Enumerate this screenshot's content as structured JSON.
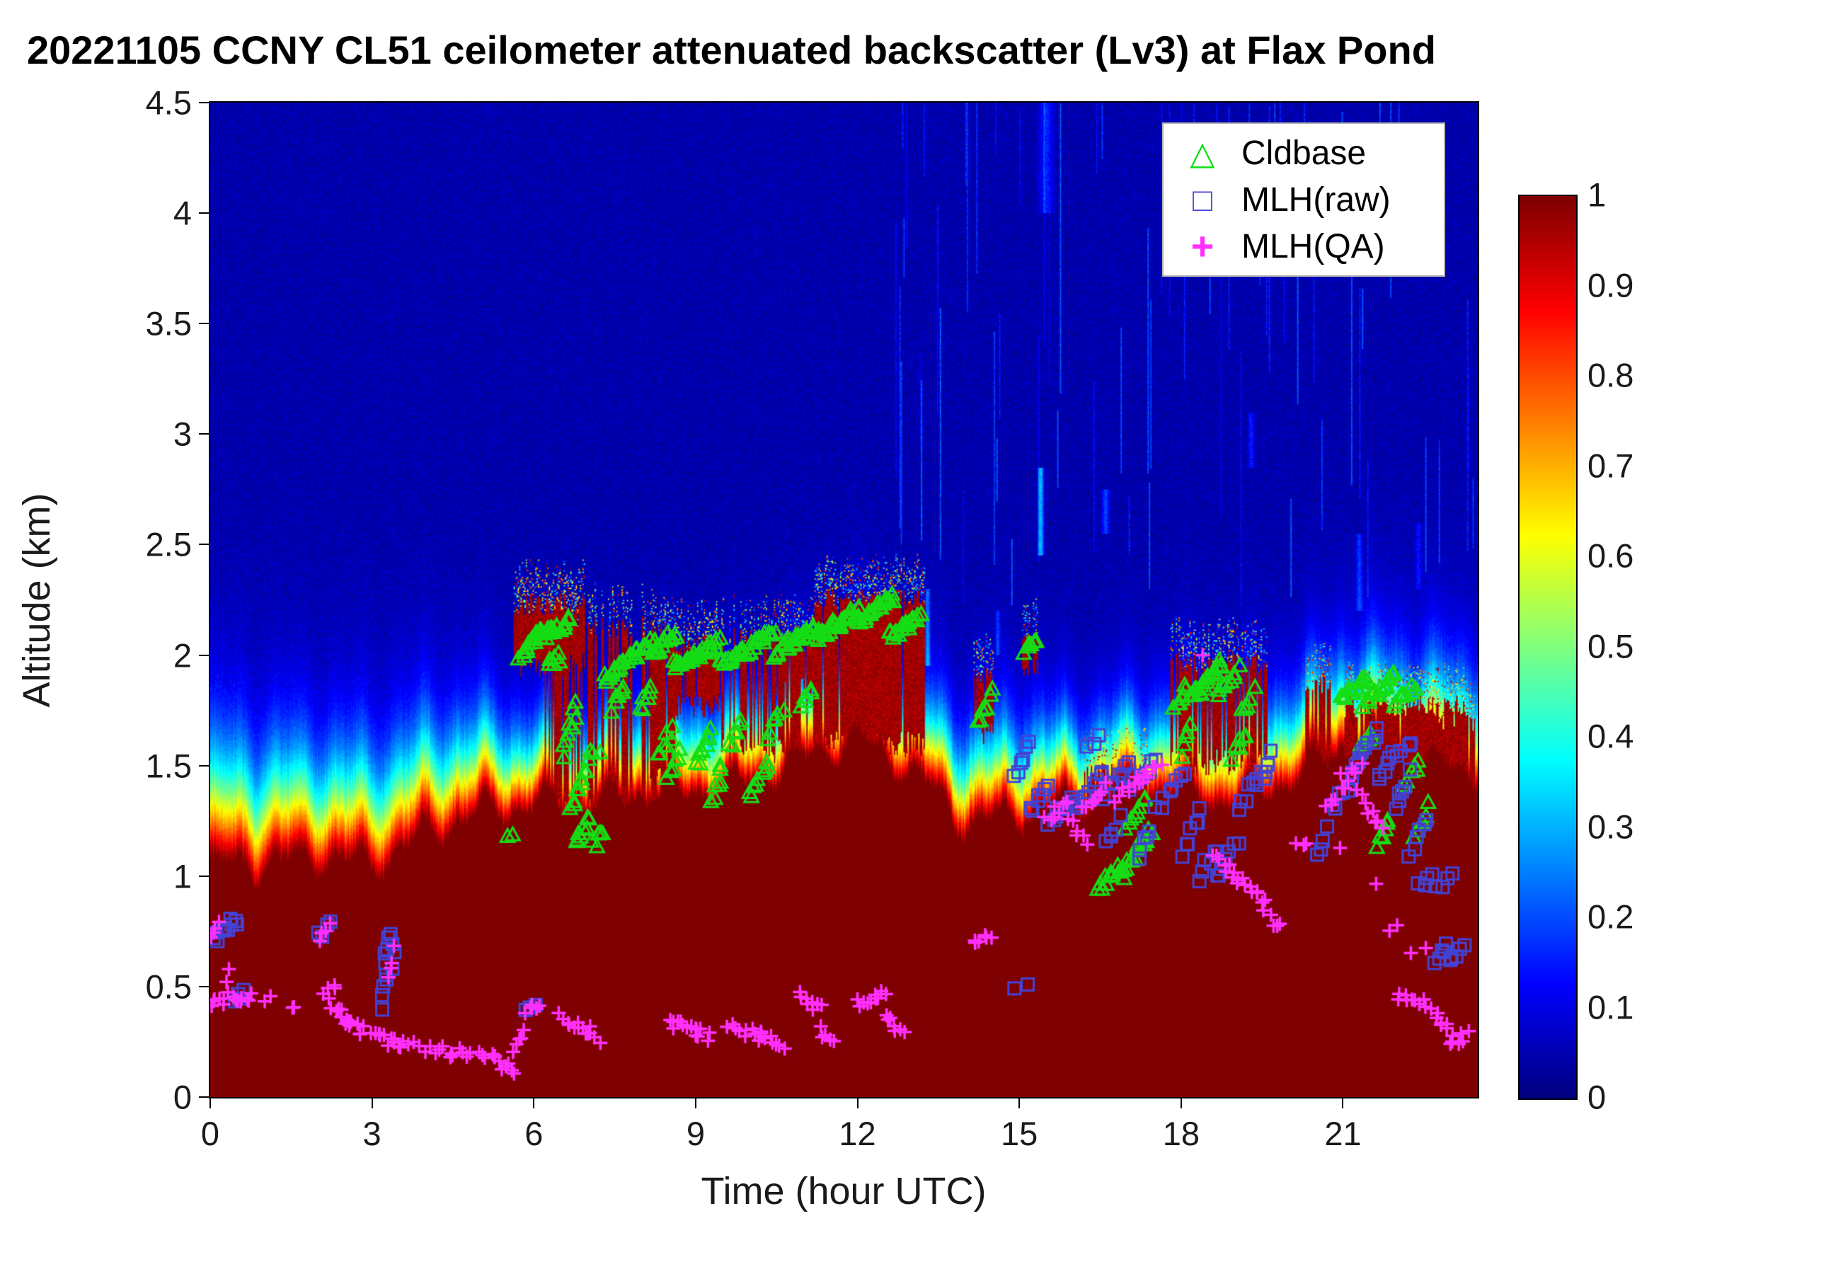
{
  "figure": {
    "background": "#ffffff"
  },
  "chart_data": {
    "type": "heatmap",
    "title": "20221105 CCNY CL51 ceilometer attenuated backscatter (Lv3) at Flax Pond",
    "xlabel": "Time (hour UTC)",
    "ylabel": "Altitude (km)",
    "x_range": [
      0,
      23.5
    ],
    "y_range": [
      0,
      4.5
    ],
    "x_tick_labels": [
      "0",
      "3",
      "6",
      "9",
      "12",
      "15",
      "18",
      "21"
    ],
    "x_tick_values": [
      0,
      3,
      6,
      9,
      12,
      15,
      18,
      21
    ],
    "y_tick_labels": [
      "0",
      "0.5",
      "1",
      "1.5",
      "2",
      "2.5",
      "3",
      "3.5",
      "4",
      "4.5"
    ],
    "y_tick_values": [
      0,
      0.5,
      1,
      1.5,
      2,
      2.5,
      3,
      3.5,
      4,
      4.5
    ],
    "grid": false,
    "colorbar": {
      "colormap": "jet",
      "min": 0,
      "max": 1,
      "tick_labels": [
        "0",
        "0.1",
        "0.2",
        "0.3",
        "0.4",
        "0.5",
        "0.6",
        "0.7",
        "0.8",
        "0.9",
        "1"
      ],
      "tick_values": [
        0,
        0.1,
        0.2,
        0.3,
        0.4,
        0.5,
        0.6,
        0.7,
        0.8,
        0.9,
        1
      ]
    },
    "legend": {
      "position": "top-right-inside",
      "items": [
        {
          "label": "Cldbase",
          "marker": "triangle",
          "color": "#15dd15"
        },
        {
          "label": "MLH(raw)",
          "marker": "square",
          "color": "#4343d6"
        },
        {
          "label": "MLH(QA)",
          "marker": "plus",
          "color": "#ff30ff"
        }
      ]
    },
    "backscatter_field": {
      "background_value": 0.045,
      "boundary_layer_top_km": [
        1.0,
        1.0,
        1.05,
        1.0,
        1.15,
        1.25,
        1.3,
        1.3,
        1.35,
        1.35,
        1.4,
        1.5,
        1.6,
        1.45,
        1.2,
        1.25,
        1.3,
        1.35,
        1.35,
        1.3,
        1.4,
        1.55,
        1.5,
        1.45,
        1.4
      ],
      "glow_scale_km": [
        0.42,
        0.4,
        0.38,
        0.38,
        0.36,
        0.32,
        0.26,
        0.26,
        0.26,
        0.26,
        0.26,
        0.26,
        0.28,
        0.28,
        0.3,
        0.3,
        0.26,
        0.26,
        0.28,
        0.3,
        0.28,
        0.3,
        0.32,
        0.32,
        0.32
      ],
      "cloud_bands": [
        [
          5.62,
          6.95,
          1.95,
          2.28,
          0.92
        ],
        [
          6.0,
          8.6,
          1.28,
          2.18,
          0.5
        ],
        [
          8.15,
          8.62,
          1.42,
          2.1,
          0.85
        ],
        [
          8.6,
          9.45,
          1.75,
          2.1,
          0.88
        ],
        [
          9.45,
          11.2,
          1.55,
          2.12,
          0.6
        ],
        [
          10.4,
          11.2,
          1.85,
          2.12,
          0.9
        ],
        [
          11.2,
          13.25,
          1.58,
          2.3,
          0.96
        ],
        [
          14.15,
          14.52,
          1.62,
          1.95,
          0.85
        ],
        [
          15.05,
          15.35,
          1.95,
          2.12,
          0.8
        ],
        [
          16.2,
          17.45,
          1.12,
          1.52,
          0.7
        ],
        [
          17.8,
          19.6,
          1.5,
          2.02,
          0.75
        ],
        [
          20.3,
          20.78,
          0.95,
          1.92,
          0.9
        ],
        [
          21.0,
          23.3,
          1.35,
          1.82,
          0.8
        ],
        [
          22.6,
          23.45,
          1.3,
          1.75,
          0.85
        ]
      ],
      "cyan_streaks": [
        [
          13.3,
          1.95,
          2.3,
          0.22,
          0.07
        ],
        [
          14.6,
          2.0,
          2.2,
          0.15,
          0.06
        ],
        [
          15.4,
          2.45,
          2.85,
          0.3,
          0.08
        ],
        [
          15.5,
          4.0,
          4.5,
          0.12,
          0.2
        ],
        [
          16.6,
          2.55,
          2.75,
          0.16,
          0.1
        ],
        [
          19.3,
          2.85,
          3.1,
          0.12,
          0.08
        ],
        [
          21.3,
          2.2,
          2.55,
          0.14,
          0.09
        ],
        [
          22.4,
          2.3,
          2.6,
          0.1,
          0.08
        ]
      ]
    },
    "cldbase_points_segments": [
      [
        5.55,
        5.65,
        1.18,
        1.2,
        2
      ],
      [
        5.75,
        6.15,
        2.0,
        2.1,
        14
      ],
      [
        6.1,
        6.65,
        2.08,
        2.15,
        22
      ],
      [
        6.25,
        6.5,
        1.95,
        2.0,
        6
      ],
      [
        6.55,
        6.8,
        1.55,
        1.78,
        9
      ],
      [
        6.7,
        6.95,
        1.3,
        1.48,
        9
      ],
      [
        6.8,
        7.05,
        1.14,
        1.26,
        9
      ],
      [
        7.0,
        7.2,
        1.53,
        1.57,
        4
      ],
      [
        7.1,
        7.3,
        1.14,
        1.2,
        5
      ],
      [
        7.3,
        8.25,
        1.9,
        2.06,
        30
      ],
      [
        7.45,
        7.7,
        1.75,
        1.86,
        7
      ],
      [
        7.95,
        8.2,
        1.74,
        1.84,
        6
      ],
      [
        8.2,
        8.6,
        2.0,
        2.1,
        16
      ],
      [
        8.3,
        8.55,
        1.54,
        1.66,
        7
      ],
      [
        8.5,
        8.72,
        1.44,
        1.56,
        6
      ],
      [
        8.6,
        9.45,
        1.95,
        2.05,
        28
      ],
      [
        9.0,
        9.3,
        1.5,
        1.66,
        9
      ],
      [
        9.3,
        9.5,
        1.34,
        1.5,
        7
      ],
      [
        9.45,
        10.45,
        1.95,
        2.1,
        32
      ],
      [
        9.6,
        9.85,
        1.58,
        1.7,
        6
      ],
      [
        10.0,
        10.35,
        1.34,
        1.52,
        9
      ],
      [
        10.3,
        10.6,
        1.64,
        1.76,
        6
      ],
      [
        10.45,
        11.2,
        2.0,
        2.12,
        26
      ],
      [
        10.95,
        11.15,
        1.74,
        1.84,
        5
      ],
      [
        11.2,
        12.05,
        2.08,
        2.2,
        30
      ],
      [
        12.0,
        12.65,
        2.15,
        2.26,
        24
      ],
      [
        12.6,
        13.15,
        2.08,
        2.18,
        18
      ],
      [
        14.25,
        14.5,
        1.7,
        1.82,
        7
      ],
      [
        15.12,
        15.3,
        2.0,
        2.08,
        6
      ],
      [
        16.45,
        16.95,
        0.95,
        1.05,
        12
      ],
      [
        16.9,
        17.45,
        1.0,
        1.2,
        16
      ],
      [
        17.0,
        17.35,
        1.22,
        1.34,
        8
      ],
      [
        17.85,
        18.1,
        1.74,
        1.86,
        7
      ],
      [
        18.0,
        18.2,
        1.55,
        1.66,
        5
      ],
      [
        18.2,
        18.75,
        1.8,
        1.96,
        20
      ],
      [
        18.7,
        19.05,
        1.84,
        1.94,
        9
      ],
      [
        18.95,
        19.2,
        1.54,
        1.64,
        6
      ],
      [
        19.1,
        19.35,
        1.74,
        1.84,
        6
      ],
      [
        21.0,
        21.45,
        1.8,
        1.9,
        14
      ],
      [
        21.4,
        21.95,
        1.78,
        1.9,
        18
      ],
      [
        21.3,
        21.55,
        1.55,
        1.66,
        6
      ],
      [
        21.6,
        21.85,
        1.14,
        1.26,
        6
      ],
      [
        21.95,
        22.35,
        1.78,
        1.86,
        9
      ],
      [
        22.15,
        22.4,
        1.4,
        1.52,
        6
      ],
      [
        22.35,
        22.6,
        1.18,
        1.32,
        5
      ]
    ],
    "mlh_raw_segments": [
      [
        0.05,
        0.5,
        0.72,
        0.8,
        11
      ],
      [
        0.45,
        0.62,
        0.43,
        0.46,
        4
      ],
      [
        2.0,
        2.2,
        0.73,
        0.78,
        4
      ],
      [
        3.18,
        3.32,
        0.42,
        0.75,
        9
      ],
      [
        3.3,
        3.42,
        0.55,
        0.68,
        4
      ],
      [
        5.88,
        6.02,
        0.4,
        0.43,
        3
      ],
      [
        14.95,
        15.12,
        0.5,
        0.5,
        2
      ],
      [
        14.9,
        15.18,
        1.44,
        1.6,
        6
      ],
      [
        15.2,
        15.55,
        1.3,
        1.42,
        7
      ],
      [
        15.55,
        16.05,
        1.25,
        1.36,
        9
      ],
      [
        16.05,
        16.55,
        1.3,
        1.46,
        9
      ],
      [
        16.25,
        16.45,
        1.58,
        1.64,
        3
      ],
      [
        16.55,
        17.05,
        1.36,
        1.5,
        9
      ],
      [
        16.6,
        16.85,
        1.14,
        1.26,
        5
      ],
      [
        17.05,
        17.55,
        1.4,
        1.52,
        9
      ],
      [
        17.2,
        17.45,
        1.1,
        1.2,
        5
      ],
      [
        17.55,
        18.05,
        1.3,
        1.46,
        8
      ],
      [
        18.05,
        18.35,
        1.1,
        1.3,
        7
      ],
      [
        18.35,
        18.65,
        1.0,
        1.12,
        6
      ],
      [
        18.65,
        19.05,
        1.0,
        1.16,
        7
      ],
      [
        19.05,
        19.45,
        1.3,
        1.48,
        7
      ],
      [
        19.45,
        19.7,
        1.4,
        1.56,
        5
      ],
      [
        20.5,
        20.75,
        1.1,
        1.2,
        4
      ],
      [
        20.8,
        21.2,
        1.3,
        1.46,
        7
      ],
      [
        21.2,
        21.65,
        1.5,
        1.66,
        9
      ],
      [
        21.65,
        21.95,
        1.44,
        1.56,
        6
      ],
      [
        21.95,
        22.25,
        1.3,
        1.46,
        6
      ],
      [
        22.0,
        22.3,
        1.54,
        1.6,
        4
      ],
      [
        22.25,
        22.55,
        1.1,
        1.26,
        6
      ],
      [
        22.4,
        22.65,
        0.95,
        1.02,
        4
      ],
      [
        22.75,
        23.0,
        0.94,
        1.0,
        4
      ],
      [
        22.7,
        22.95,
        0.6,
        0.7,
        5
      ],
      [
        22.95,
        23.25,
        0.62,
        0.68,
        5
      ]
    ],
    "mlh_qa_segments": [
      [
        0.02,
        0.15,
        0.74,
        0.78,
        4
      ],
      [
        0.0,
        0.52,
        0.43,
        0.46,
        10
      ],
      [
        0.3,
        0.38,
        0.54,
        0.56,
        2
      ],
      [
        0.55,
        0.75,
        0.42,
        0.45,
        5
      ],
      [
        1.0,
        1.1,
        0.44,
        0.45,
        2
      ],
      [
        1.5,
        1.58,
        0.4,
        0.41,
        2
      ],
      [
        2.02,
        2.2,
        0.73,
        0.77,
        4
      ],
      [
        2.1,
        2.32,
        0.45,
        0.5,
        5
      ],
      [
        2.25,
        2.55,
        0.42,
        0.34,
        7
      ],
      [
        2.55,
        2.85,
        0.33,
        0.3,
        7
      ],
      [
        3.0,
        3.5,
        0.28,
        0.24,
        10
      ],
      [
        3.3,
        3.42,
        0.55,
        0.66,
        4
      ],
      [
        3.5,
        4.5,
        0.24,
        0.2,
        12
      ],
      [
        4.5,
        5.3,
        0.2,
        0.17,
        10
      ],
      [
        5.3,
        5.62,
        0.16,
        0.13,
        7
      ],
      [
        5.62,
        5.92,
        0.18,
        0.4,
        7
      ],
      [
        5.9,
        6.1,
        0.4,
        0.43,
        4
      ],
      [
        6.5,
        7.02,
        0.36,
        0.3,
        10
      ],
      [
        7.0,
        7.2,
        0.3,
        0.27,
        4
      ],
      [
        8.5,
        9.02,
        0.34,
        0.29,
        10
      ],
      [
        9.0,
        9.25,
        0.3,
        0.27,
        5
      ],
      [
        9.6,
        10.2,
        0.32,
        0.27,
        11
      ],
      [
        10.2,
        10.62,
        0.28,
        0.24,
        8
      ],
      [
        10.9,
        11.32,
        0.47,
        0.4,
        8
      ],
      [
        11.3,
        11.52,
        0.3,
        0.25,
        5
      ],
      [
        12.0,
        12.52,
        0.42,
        0.48,
        10
      ],
      [
        12.5,
        12.85,
        0.36,
        0.3,
        7
      ],
      [
        14.15,
        14.45,
        0.7,
        0.74,
        6
      ],
      [
        15.5,
        15.92,
        1.25,
        1.35,
        8
      ],
      [
        15.9,
        16.22,
        1.25,
        1.15,
        6
      ],
      [
        16.2,
        16.62,
        1.3,
        1.42,
        8
      ],
      [
        16.8,
        17.32,
        1.35,
        1.46,
        9
      ],
      [
        17.3,
        17.62,
        1.44,
        1.5,
        6
      ],
      [
        18.35,
        18.45,
        2.0,
        2.01,
        1
      ],
      [
        18.6,
        19.02,
        1.1,
        1.0,
        8
      ],
      [
        19.0,
        19.52,
        1.0,
        0.9,
        9
      ],
      [
        19.5,
        19.82,
        0.86,
        0.76,
        6
      ],
      [
        20.15,
        20.35,
        1.14,
        1.16,
        3
      ],
      [
        20.7,
        21.02,
        1.3,
        1.42,
        6
      ],
      [
        20.9,
        21.0,
        1.14,
        1.16,
        1
      ],
      [
        21.0,
        21.32,
        1.44,
        1.5,
        6
      ],
      [
        21.3,
        21.52,
        1.4,
        1.3,
        4
      ],
      [
        21.5,
        21.72,
        1.3,
        1.2,
        4
      ],
      [
        21.55,
        21.65,
        0.95,
        0.96,
        1
      ],
      [
        21.9,
        22.0,
        0.74,
        0.76,
        2
      ],
      [
        22.0,
        22.42,
        0.47,
        0.42,
        7
      ],
      [
        22.3,
        22.5,
        0.64,
        0.66,
        2
      ],
      [
        22.5,
        22.72,
        0.42,
        0.4,
        4
      ],
      [
        22.72,
        23.02,
        0.34,
        0.3,
        6
      ],
      [
        23.0,
        23.32,
        0.24,
        0.28,
        6
      ]
    ]
  }
}
